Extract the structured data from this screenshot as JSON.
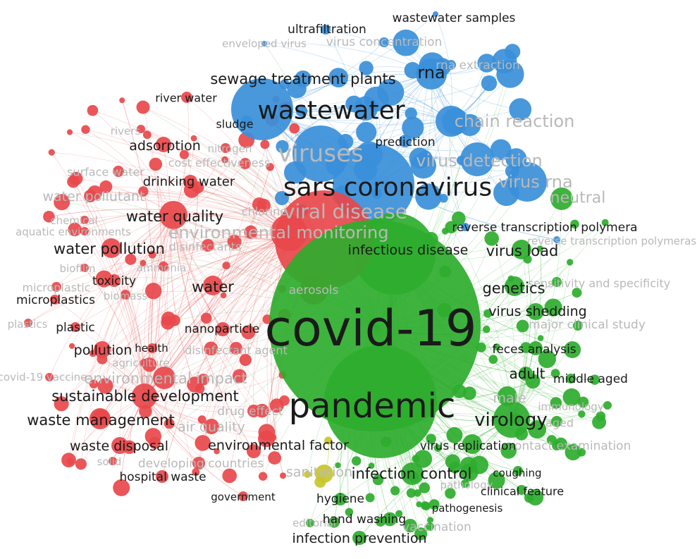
{
  "colors": {
    "blue": "#3a8fd9",
    "red": "#e8484b",
    "green": "#2eac2e",
    "yellow": "#c9c52a",
    "label_dark": "#1a1a1a",
    "label_faded": "#b9b9b9"
  },
  "clusters": {
    "blue": [
      "wastewater samples",
      "ultrafiltration",
      "enveloped virus",
      "virus concentration",
      "rna extraction",
      "rna",
      "sewage treatment plants",
      "wastewater",
      "sludge",
      "prediction",
      "chain reaction",
      "viruses",
      "virus detection",
      "sars coronavirus",
      "virus rna",
      "reverse transcription polymera",
      "reverse transcription polymerase chain rea"
    ],
    "red": [
      "river water",
      "rivers",
      "adsorption",
      "nitrogen",
      "cost effectiveness",
      "surface water",
      "drinking water",
      "water pollutant",
      "chemical",
      "water quality",
      "chlorine",
      "aquatic environments",
      "disinfectants",
      "water pollution",
      "ammonia",
      "biofilm",
      "toxicity",
      "microplastic",
      "biomass",
      "water",
      "microplastics",
      "plastics",
      "plastic",
      "nanoparticle",
      "health",
      "pollution",
      "disinfectant agent",
      "agriculture",
      "environmental impact",
      "covid-19 vaccine",
      "sustainable development",
      "drug effect",
      "waste management",
      "air quality",
      "waste disposal",
      "environmental factor",
      "solid",
      "developing countries",
      "hospital waste",
      "government",
      "environmental monitoring",
      "viral disease",
      "aerosols"
    ],
    "green": [
      "covid-19",
      "pandemic",
      "infectious disease",
      "virus load",
      "genetics",
      "sensitivity and specificity",
      "virus shedding",
      "major clinical study",
      "feces analysis",
      "adult",
      "middle aged",
      "male",
      "immunology",
      "virology",
      "aged",
      "virus replication",
      "contact examination",
      "infection control",
      "coughing",
      "clinical feature",
      "pathology",
      "hygiene",
      "pathogenesis",
      "hand washing",
      "vaccination",
      "editorial",
      "infection prevention",
      "neutral"
    ],
    "yellow": [
      "sanitation"
    ]
  }
}
